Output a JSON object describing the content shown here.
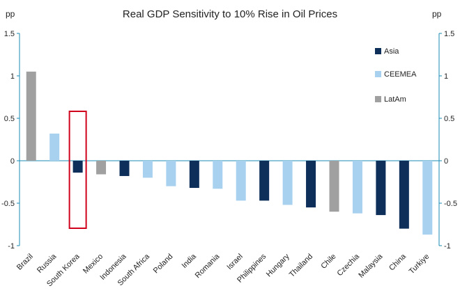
{
  "chart_data": {
    "type": "bar",
    "title": "Real GDP Sensitivity to 10% Rise in Oil Prices",
    "unit_left": "pp",
    "unit_right": "pp",
    "ylim": [
      -1,
      1.5
    ],
    "yticks": [
      1.5,
      1,
      0.5,
      0,
      -0.5,
      -1
    ],
    "ytick_labels": [
      "1.5",
      "1",
      "0.5",
      "0",
      "-0.5",
      "-1"
    ],
    "categories": [
      "Brazil",
      "Russia",
      "South Korea",
      "Mexico",
      "Indonesia",
      "South Africa",
      "Poland",
      "India",
      "Romania",
      "Israel",
      "Philippines",
      "Hungary",
      "Thailand",
      "Chile",
      "Czechia",
      "Malaysia",
      "China",
      "Turkiye"
    ],
    "values": [
      1.05,
      0.32,
      -0.14,
      -0.16,
      -0.18,
      -0.2,
      -0.3,
      -0.32,
      -0.33,
      -0.47,
      -0.47,
      -0.52,
      -0.55,
      -0.6,
      -0.62,
      -0.64,
      -0.8,
      -0.87
    ],
    "regions": [
      "LatAm",
      "CEEMEA",
      "Asia",
      "LatAm",
      "Asia",
      "CEEMEA",
      "CEEMEA",
      "Asia",
      "CEEMEA",
      "CEEMEA",
      "Asia",
      "CEEMEA",
      "Asia",
      "LatAm",
      "CEEMEA",
      "Asia",
      "Asia",
      "CEEMEA"
    ],
    "legend": [
      {
        "name": "Asia",
        "color": "#0d2f5a"
      },
      {
        "name": "CEEMEA",
        "color": "#a8d1f0"
      },
      {
        "name": "LatAm",
        "color": "#a0a0a0"
      }
    ],
    "highlight_category": "South Korea",
    "highlight_color": "#d0021b",
    "axis_color": "#1a8ab5"
  }
}
